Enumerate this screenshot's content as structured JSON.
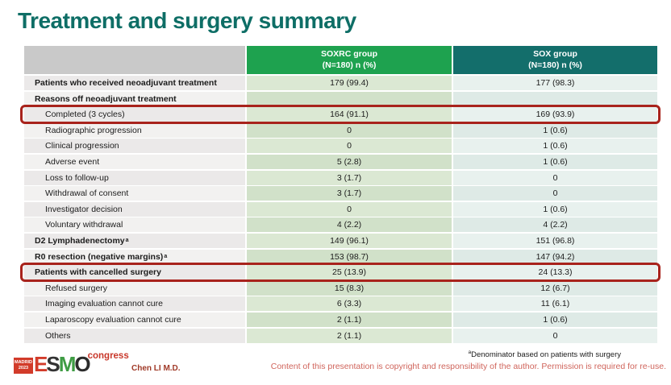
{
  "title": "Treatment and surgery summary",
  "colors": {
    "title": "#0e6e66",
    "header_soxrc_bg": "#1ea24f",
    "header_sox_bg": "#136e6b",
    "header_label_bg": "#c9c9c9",
    "row_label_odd": "#ebe9e9",
    "row_label_even": "#f2f1f0",
    "soxrc_odd": "#dbe8d3",
    "soxrc_even": "#d1e1c9",
    "sox_odd": "#e8f1ee",
    "sox_even": "#deeae6",
    "highlight_border": "#a8231c",
    "footnote_text": "#1a1a1a",
    "copyright_text": "#d0655c",
    "author_text": "#a03a28",
    "madrid_badge_bg": "#d23b2a",
    "congress_text": "#c8372a"
  },
  "table": {
    "columns": [
      {
        "line1": "SOXRC group",
        "line2": "(N=180)  n (%)"
      },
      {
        "line1": "SOX group",
        "line2": "(N=180)  n (%)"
      }
    ],
    "rows": [
      {
        "label": "Patients who received neoadjuvant treatment",
        "soxrc": "179 (99.4)",
        "sox": "177 (98.3)",
        "bold": true,
        "indent": false,
        "highlight": false
      },
      {
        "label": "Reasons off neoadjuvant treatment",
        "soxrc": "",
        "sox": "",
        "bold": true,
        "indent": false,
        "highlight": false
      },
      {
        "label": "Completed (3 cycles)",
        "soxrc": "164 (91.1)",
        "sox": "169 (93.9)",
        "bold": false,
        "indent": true,
        "highlight": true
      },
      {
        "label": "Radiographic progression",
        "soxrc": "0",
        "sox": "1 (0.6)",
        "bold": false,
        "indent": true,
        "highlight": false
      },
      {
        "label": "Clinical progression",
        "soxrc": "0",
        "sox": "1 (0.6)",
        "bold": false,
        "indent": true,
        "highlight": false
      },
      {
        "label": "Adverse event",
        "soxrc": "5 (2.8)",
        "sox": "1 (0.6)",
        "bold": false,
        "indent": true,
        "highlight": false
      },
      {
        "label": "Loss to follow-up",
        "soxrc": "3 (1.7)",
        "sox": "0",
        "bold": false,
        "indent": true,
        "highlight": false
      },
      {
        "label": "Withdrawal of consent",
        "soxrc": "3 (1.7)",
        "sox": "0",
        "bold": false,
        "indent": true,
        "highlight": false
      },
      {
        "label": "Investigator decision",
        "soxrc": "0",
        "sox": "1 (0.6)",
        "bold": false,
        "indent": true,
        "highlight": false
      },
      {
        "label": "Voluntary withdrawal",
        "soxrc": "4 (2.2)",
        "sox": "4 (2.2)",
        "bold": false,
        "indent": true,
        "highlight": false
      },
      {
        "label": "D2 Lymphadenectomy",
        "sup": "a",
        "soxrc": "149 (96.1)",
        "sox": "151 (96.8)",
        "bold": true,
        "indent": false,
        "highlight": false
      },
      {
        "label": "R0 resection (negative margins)",
        "sup": "a",
        "soxrc": "153 (98.7)",
        "sox": "147 (94.2)",
        "bold": true,
        "indent": false,
        "highlight": false
      },
      {
        "label": "Patients with cancelled surgery",
        "soxrc": "25 (13.9)",
        "sox": "24 (13.3)",
        "bold": true,
        "indent": false,
        "highlight": true
      },
      {
        "label": "Refused surgery",
        "soxrc": "15 (8.3)",
        "sox": "12 (6.7)",
        "bold": false,
        "indent": true,
        "highlight": false
      },
      {
        "label": "Imaging evaluation cannot cure",
        "soxrc": "6 (3.3)",
        "sox": "11 (6.1)",
        "bold": false,
        "indent": true,
        "highlight": false
      },
      {
        "label": "Laparoscopy evaluation cannot cure",
        "soxrc": "2 (1.1)",
        "sox": "1 (0.6)",
        "bold": false,
        "indent": true,
        "highlight": false
      },
      {
        "label": "Others",
        "soxrc": "2 (1.1)",
        "sox": "0",
        "bold": false,
        "indent": true,
        "highlight": false
      }
    ]
  },
  "footer": {
    "footnote_sup": "a",
    "footnote_text": "Denominator based on patients with surgery",
    "copyright": "Content of this presentation is copyright and responsibility of the author. Permission is required for re-use.",
    "author": "Chen LI M.D.",
    "logo": {
      "city": "MADRID",
      "year": "2023",
      "letters": [
        {
          "ch": "E",
          "color": "#d23b2a"
        },
        {
          "ch": "S",
          "color": "#333333"
        },
        {
          "ch": "M",
          "color": "#3f9c44"
        },
        {
          "ch": "O",
          "color": "#2b2b2b"
        }
      ],
      "congress": "congress"
    }
  }
}
